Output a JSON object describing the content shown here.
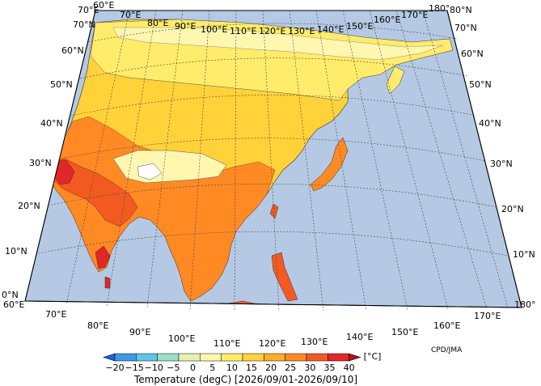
{
  "map": {
    "lon_labels": [
      "60°E",
      "70°E",
      "80°E",
      "90°E",
      "100°E",
      "110°E",
      "120°E",
      "130°E",
      "140°E",
      "150°E",
      "160°E",
      "170°E",
      "180°"
    ],
    "lat_labels": [
      "0°N",
      "10°N",
      "20°N",
      "30°N",
      "40°N",
      "50°N",
      "60°N",
      "70°N",
      "80°N"
    ],
    "ocean_color": "#b5c9e4",
    "land_color": "#f7e86a"
  },
  "legend": {
    "ticks": [
      "−20",
      "−15",
      "−10",
      "−5",
      "0",
      "5",
      "10",
      "15",
      "20",
      "25",
      "30",
      "35",
      "40"
    ],
    "unit": "[°C]",
    "colors": [
      "#2060d8",
      "#3a9ae8",
      "#5ec6e8",
      "#9adfc8",
      "#e8f0b0",
      "#fff6b0",
      "#ffec6a",
      "#ffd23a",
      "#ffae28",
      "#ff8a24",
      "#f25a22",
      "#e02828",
      "#b80c1a"
    ],
    "caption": "Temperature (degC) [2026/09/01-2026/09/10]"
  },
  "credit": "CPD/JMA"
}
